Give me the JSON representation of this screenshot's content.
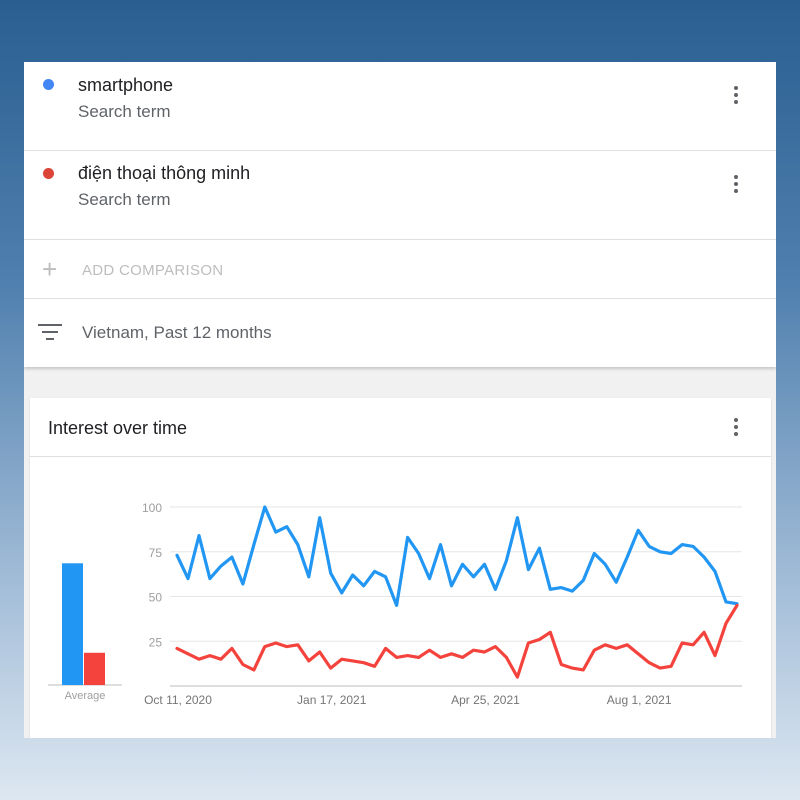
{
  "terms": [
    {
      "name": "smartphone",
      "subtitle": "Search term",
      "color": "#4285f4"
    },
    {
      "name": "điện thoại thông minh",
      "subtitle": "Search term",
      "color": "#db4437"
    }
  ],
  "add_comparison": {
    "label": "ADD COMPARISON"
  },
  "filter": {
    "text": "Vietnam, Past 12 months"
  },
  "interest_card": {
    "title": "Interest over time"
  },
  "chart_data": {
    "type": "line",
    "ylim": [
      0,
      100
    ],
    "yticks": [
      25,
      50,
      75,
      100
    ],
    "x_tick_labels": [
      "Oct 11, 2020",
      "Jan 17, 2021",
      "Apr 25, 2021",
      "Aug 1, 2021"
    ],
    "x_tick_index": [
      0,
      14,
      28,
      42
    ],
    "series": [
      {
        "name": "smartphone",
        "color": "#2196f3",
        "values": [
          73,
          60,
          84,
          60,
          67,
          72,
          57,
          79,
          100,
          86,
          89,
          79,
          61,
          94,
          63,
          52,
          62,
          56,
          64,
          61,
          45,
          83,
          74,
          60,
          79,
          56,
          68,
          61,
          68,
          54,
          70,
          94,
          65,
          77,
          54,
          55,
          53,
          59,
          74,
          68,
          58,
          72,
          87,
          78,
          75,
          74,
          79,
          78,
          72,
          64,
          47,
          46
        ]
      },
      {
        "name": "điện thoại thông minh",
        "color": "#f4433c",
        "values": [
          21,
          18,
          15,
          17,
          15,
          21,
          12,
          9,
          22,
          24,
          22,
          23,
          14,
          19,
          10,
          15,
          14,
          13,
          11,
          21,
          16,
          17,
          16,
          20,
          16,
          18,
          16,
          20,
          19,
          22,
          16,
          5,
          24,
          26,
          30,
          12,
          10,
          9,
          20,
          23,
          21,
          23,
          18,
          13,
          10,
          11,
          24,
          23,
          30,
          17,
          35,
          45
        ]
      }
    ],
    "average_bars": {
      "label": "Average",
      "values": [
        68,
        18
      ]
    }
  }
}
